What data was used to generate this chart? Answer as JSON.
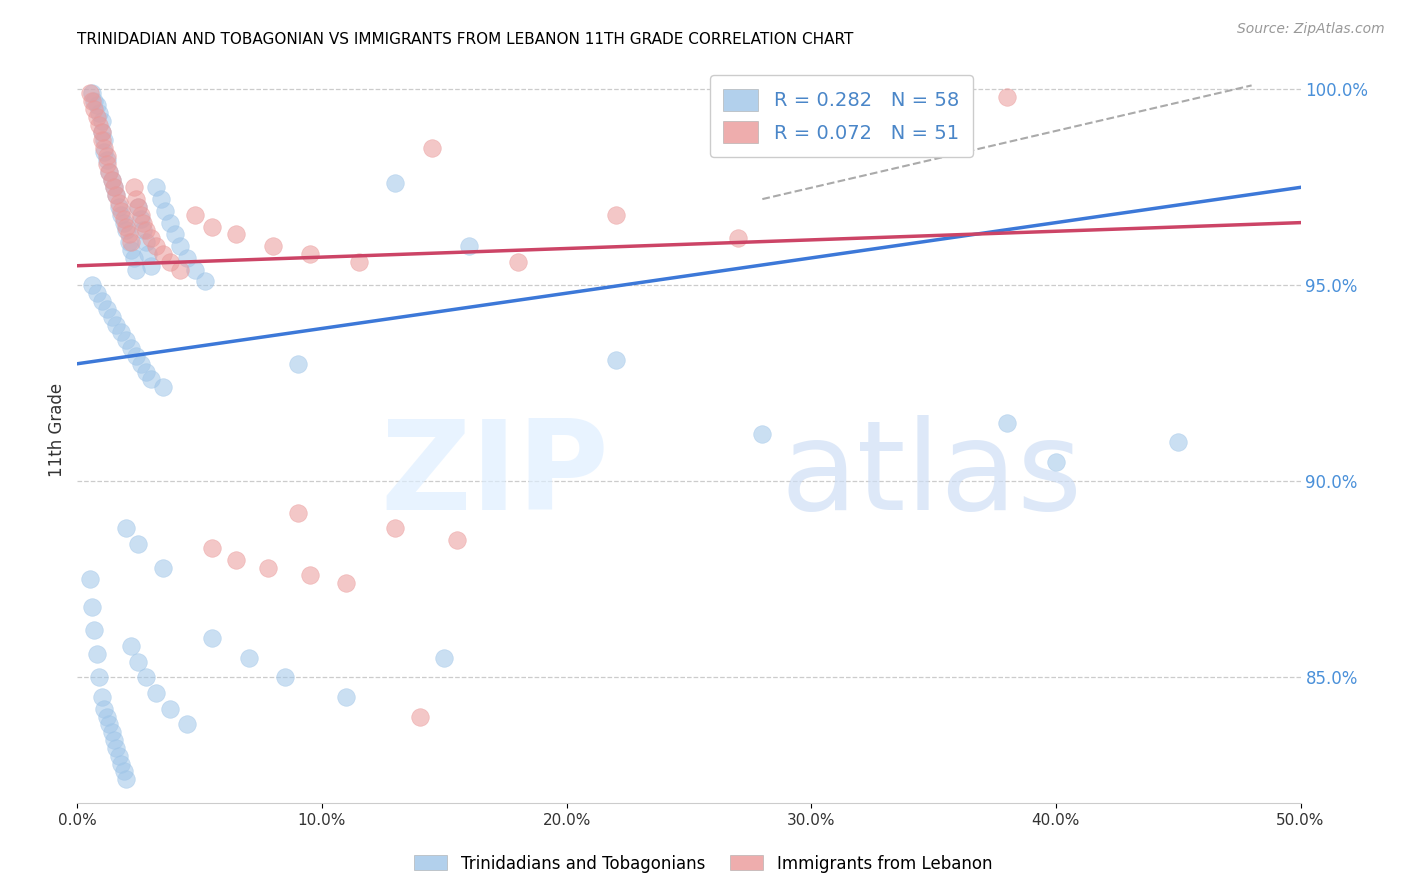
{
  "title": "TRINIDADIAN AND TOBAGONIAN VS IMMIGRANTS FROM LEBANON 11TH GRADE CORRELATION CHART",
  "source": "Source: ZipAtlas.com",
  "ylabel_left": "11th Grade",
  "xlim": [
    0.0,
    0.5
  ],
  "ylim": [
    0.818,
    1.008
  ],
  "xtick_positions": [
    0.0,
    0.1,
    0.2,
    0.3,
    0.4,
    0.5
  ],
  "xticklabels": [
    "0.0%",
    "10.0%",
    "20.0%",
    "30.0%",
    "40.0%",
    "50.0%"
  ],
  "right_yticks": [
    1.0,
    0.95,
    0.9,
    0.85
  ],
  "right_yticklabels": [
    "100.0%",
    "95.0%",
    "90.0%",
    "85.0%"
  ],
  "blue_color": "#9fc5e8",
  "pink_color": "#ea9999",
  "blue_line_color": "#3c78d8",
  "pink_line_color": "#cc4466",
  "right_axis_color": "#4a90d9",
  "grid_color": "#cccccc",
  "bg_color": "#ffffff",
  "legend_color": "#4a86c8",
  "blue_scatter_x": [
    0.006,
    0.007,
    0.008,
    0.009,
    0.01,
    0.01,
    0.011,
    0.011,
    0.012,
    0.013,
    0.014,
    0.015,
    0.016,
    0.017,
    0.018,
    0.019,
    0.02,
    0.021,
    0.022,
    0.023,
    0.024,
    0.025,
    0.026,
    0.027,
    0.028,
    0.029,
    0.03,
    0.032,
    0.034,
    0.036,
    0.038,
    0.04,
    0.042,
    0.045,
    0.048,
    0.052,
    0.006,
    0.008,
    0.01,
    0.012,
    0.014,
    0.016,
    0.018,
    0.02,
    0.022,
    0.024,
    0.026,
    0.028,
    0.03,
    0.035,
    0.09,
    0.13,
    0.16,
    0.22,
    0.28,
    0.38,
    0.4,
    0.45
  ],
  "blue_scatter_y": [
    0.999,
    0.997,
    0.996,
    0.994,
    0.992,
    0.989,
    0.987,
    0.984,
    0.982,
    0.979,
    0.977,
    0.975,
    0.973,
    0.97,
    0.968,
    0.966,
    0.964,
    0.961,
    0.959,
    0.957,
    0.954,
    0.97,
    0.967,
    0.964,
    0.961,
    0.958,
    0.955,
    0.975,
    0.972,
    0.969,
    0.966,
    0.963,
    0.96,
    0.957,
    0.954,
    0.951,
    0.95,
    0.948,
    0.946,
    0.944,
    0.942,
    0.94,
    0.938,
    0.936,
    0.934,
    0.932,
    0.93,
    0.928,
    0.926,
    0.924,
    0.93,
    0.976,
    0.96,
    0.931,
    0.912,
    0.915,
    0.905,
    0.91
  ],
  "blue_scatter_x2": [
    0.005,
    0.006,
    0.007,
    0.008,
    0.009,
    0.01,
    0.011,
    0.012,
    0.013,
    0.014,
    0.015,
    0.016,
    0.017,
    0.018,
    0.019,
    0.02,
    0.022,
    0.025,
    0.028,
    0.032,
    0.038,
    0.045,
    0.055,
    0.07,
    0.085,
    0.11,
    0.15,
    0.02,
    0.025,
    0.035
  ],
  "blue_scatter_y2": [
    0.875,
    0.868,
    0.862,
    0.856,
    0.85,
    0.845,
    0.842,
    0.84,
    0.838,
    0.836,
    0.834,
    0.832,
    0.83,
    0.828,
    0.826,
    0.824,
    0.858,
    0.854,
    0.85,
    0.846,
    0.842,
    0.838,
    0.86,
    0.855,
    0.85,
    0.845,
    0.855,
    0.888,
    0.884,
    0.878
  ],
  "pink_scatter_x": [
    0.005,
    0.006,
    0.007,
    0.008,
    0.009,
    0.01,
    0.01,
    0.011,
    0.012,
    0.012,
    0.013,
    0.014,
    0.015,
    0.016,
    0.017,
    0.018,
    0.019,
    0.02,
    0.021,
    0.022,
    0.023,
    0.024,
    0.025,
    0.026,
    0.027,
    0.028,
    0.03,
    0.032,
    0.035,
    0.038,
    0.042,
    0.048,
    0.055,
    0.065,
    0.08,
    0.095,
    0.115,
    0.145,
    0.18,
    0.22,
    0.27,
    0.38,
    0.09,
    0.13,
    0.155,
    0.055,
    0.065,
    0.078,
    0.095,
    0.11,
    0.14
  ],
  "pink_scatter_y": [
    0.999,
    0.997,
    0.995,
    0.993,
    0.991,
    0.989,
    0.987,
    0.985,
    0.983,
    0.981,
    0.979,
    0.977,
    0.975,
    0.973,
    0.971,
    0.969,
    0.967,
    0.965,
    0.963,
    0.961,
    0.975,
    0.972,
    0.97,
    0.968,
    0.966,
    0.964,
    0.962,
    0.96,
    0.958,
    0.956,
    0.954,
    0.968,
    0.965,
    0.963,
    0.96,
    0.958,
    0.956,
    0.985,
    0.956,
    0.968,
    0.962,
    0.998,
    0.892,
    0.888,
    0.885,
    0.883,
    0.88,
    0.878,
    0.876,
    0.874,
    0.84
  ],
  "blue_line_x": [
    0.0,
    0.5
  ],
  "blue_line_y": [
    0.93,
    0.975
  ],
  "pink_line_x": [
    0.0,
    0.5
  ],
  "pink_line_y": [
    0.955,
    0.966
  ],
  "dashed_line_x": [
    0.28,
    0.48
  ],
  "dashed_line_y": [
    0.972,
    1.001
  ],
  "legend1_r": "R = 0.282",
  "legend1_n": "N = 58",
  "legend2_r": "R = 0.072",
  "legend2_n": "N = 51",
  "legend_blue_label": "Trinidadians and Tobagonians",
  "legend_pink_label": "Immigrants from Lebanon"
}
